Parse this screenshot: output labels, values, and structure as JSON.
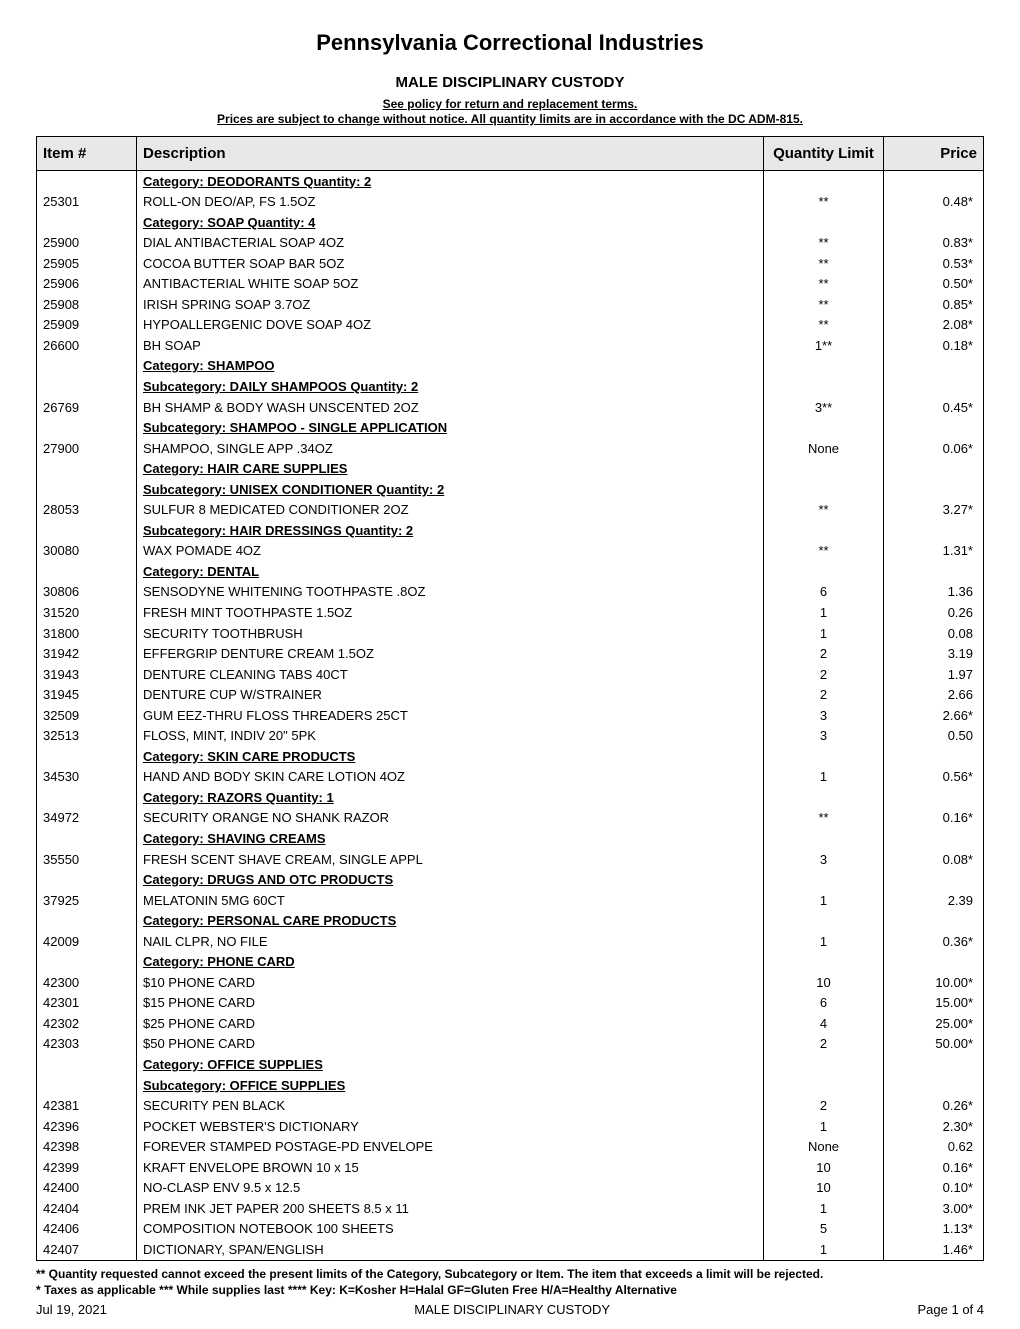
{
  "header": {
    "title": "Pennsylvania Correctional Industries",
    "subtitle": "MALE DISCIPLINARY CUSTODY",
    "policy_line1": "See policy for return and replacement terms.",
    "policy_line2": "Prices are subject to change without notice. All quantity limits are in accordance with the DC ADM-815."
  },
  "columns": {
    "item": "Item #",
    "desc": "Description",
    "qty": "Quantity Limit",
    "price": "Price"
  },
  "rows": [
    {
      "type": "cat",
      "desc": "Category: DEODORANTS Quantity: 2"
    },
    {
      "type": "item",
      "item": "25301",
      "desc": "ROLL-ON DEO/AP, FS 1.5OZ",
      "qty": "**",
      "price": "0.48*"
    },
    {
      "type": "cat",
      "desc": "Category: SOAP Quantity: 4"
    },
    {
      "type": "item",
      "item": "25900",
      "desc": "DIAL ANTIBACTERIAL SOAP 4OZ",
      "qty": "**",
      "price": "0.83*"
    },
    {
      "type": "item",
      "item": "25905",
      "desc": "COCOA BUTTER SOAP BAR 5OZ",
      "qty": "**",
      "price": "0.53*"
    },
    {
      "type": "item",
      "item": "25906",
      "desc": "ANTIBACTERIAL WHITE SOAP 5OZ",
      "qty": "**",
      "price": "0.50*"
    },
    {
      "type": "item",
      "item": "25908",
      "desc": "IRISH SPRING SOAP 3.7OZ",
      "qty": "**",
      "price": "0.85*"
    },
    {
      "type": "item",
      "item": "25909",
      "desc": "HYPOALLERGENIC DOVE SOAP 4OZ",
      "qty": "**",
      "price": "2.08*"
    },
    {
      "type": "item",
      "item": "26600",
      "desc": "BH SOAP",
      "qty": "1**",
      "price": "0.18*"
    },
    {
      "type": "cat",
      "desc": "Category: SHAMPOO"
    },
    {
      "type": "subcat",
      "desc": "Subcategory: DAILY SHAMPOOS Quantity: 2"
    },
    {
      "type": "item",
      "item": "26769",
      "desc": "BH SHAMP & BODY WASH UNSCENTED 2OZ",
      "qty": "3**",
      "price": "0.45*"
    },
    {
      "type": "subcat",
      "desc": "Subcategory: SHAMPOO - SINGLE APPLICATION"
    },
    {
      "type": "item",
      "item": "27900",
      "desc": "SHAMPOO, SINGLE APP .34OZ",
      "qty": "None",
      "price": "0.06*"
    },
    {
      "type": "cat",
      "desc": "Category: HAIR CARE SUPPLIES"
    },
    {
      "type": "subcat",
      "desc": "Subcategory: UNISEX CONDITIONER Quantity: 2"
    },
    {
      "type": "item",
      "item": "28053",
      "desc": "SULFUR 8 MEDICATED CONDITIONER 2OZ",
      "qty": "**",
      "price": "3.27*"
    },
    {
      "type": "subcat",
      "desc": "Subcategory: HAIR DRESSINGS Quantity: 2"
    },
    {
      "type": "item",
      "item": "30080",
      "desc": "WAX POMADE 4OZ",
      "qty": "**",
      "price": "1.31*"
    },
    {
      "type": "cat",
      "desc": "Category: DENTAL"
    },
    {
      "type": "item",
      "item": "30806",
      "desc": "SENSODYNE WHITENING TOOTHPASTE .8OZ",
      "qty": "6",
      "price": "1.36"
    },
    {
      "type": "item",
      "item": "31520",
      "desc": "FRESH MINT TOOTHPASTE 1.5OZ",
      "qty": "1",
      "price": "0.26"
    },
    {
      "type": "item",
      "item": "31800",
      "desc": "SECURITY TOOTHBRUSH",
      "qty": "1",
      "price": "0.08"
    },
    {
      "type": "item",
      "item": "31942",
      "desc": "EFFERGRIP DENTURE CREAM 1.5OZ",
      "qty": "2",
      "price": "3.19"
    },
    {
      "type": "item",
      "item": "31943",
      "desc": "DENTURE CLEANING TABS 40CT",
      "qty": "2",
      "price": "1.97"
    },
    {
      "type": "item",
      "item": "31945",
      "desc": "DENTURE CUP W/STRAINER",
      "qty": "2",
      "price": "2.66"
    },
    {
      "type": "item",
      "item": "32509",
      "desc": "GUM EEZ-THRU FLOSS THREADERS 25CT",
      "qty": "3",
      "price": "2.66*"
    },
    {
      "type": "item",
      "item": "32513",
      "desc": "FLOSS, MINT, INDIV 20\" 5PK",
      "qty": "3",
      "price": "0.50"
    },
    {
      "type": "cat",
      "desc": "Category: SKIN CARE PRODUCTS"
    },
    {
      "type": "item",
      "item": "34530",
      "desc": "HAND AND BODY SKIN CARE LOTION 4OZ",
      "qty": "1",
      "price": "0.56*"
    },
    {
      "type": "cat",
      "desc": "Category: RAZORS Quantity: 1"
    },
    {
      "type": "item",
      "item": "34972",
      "desc": "SECURITY ORANGE NO SHANK RAZOR",
      "qty": "**",
      "price": "0.16*"
    },
    {
      "type": "cat",
      "desc": "Category: SHAVING CREAMS"
    },
    {
      "type": "item",
      "item": "35550",
      "desc": "FRESH SCENT SHAVE CREAM, SINGLE APPL",
      "qty": "3",
      "price": "0.08*"
    },
    {
      "type": "cat",
      "desc": "Category: DRUGS AND OTC PRODUCTS"
    },
    {
      "type": "item",
      "item": "37925",
      "desc": "MELATONIN 5MG 60CT",
      "qty": "1",
      "price": "2.39"
    },
    {
      "type": "cat",
      "desc": "Category: PERSONAL CARE PRODUCTS"
    },
    {
      "type": "item",
      "item": "42009",
      "desc": "NAIL CLPR, NO FILE",
      "qty": "1",
      "price": "0.36*"
    },
    {
      "type": "cat",
      "desc": "Category: PHONE CARD"
    },
    {
      "type": "item",
      "item": "42300",
      "desc": "$10 PHONE CARD",
      "qty": "10",
      "price": "10.00*"
    },
    {
      "type": "item",
      "item": "42301",
      "desc": "$15 PHONE CARD",
      "qty": "6",
      "price": "15.00*"
    },
    {
      "type": "item",
      "item": "42302",
      "desc": "$25 PHONE CARD",
      "qty": "4",
      "price": "25.00*"
    },
    {
      "type": "item",
      "item": "42303",
      "desc": "$50 PHONE CARD",
      "qty": "2",
      "price": "50.00*"
    },
    {
      "type": "cat",
      "desc": "Category: OFFICE SUPPLIES"
    },
    {
      "type": "subcat",
      "desc": "Subcategory: OFFICE SUPPLIES"
    },
    {
      "type": "item",
      "item": "42381",
      "desc": "SECURITY PEN BLACK",
      "qty": "2",
      "price": "0.26*"
    },
    {
      "type": "item",
      "item": "42396",
      "desc": "POCKET WEBSTER'S DICTIONARY",
      "qty": "1",
      "price": "2.30*"
    },
    {
      "type": "item",
      "item": "42398",
      "desc": "FOREVER STAMPED POSTAGE-PD ENVELOPE",
      "qty": "None",
      "price": "0.62"
    },
    {
      "type": "item",
      "item": "42399",
      "desc": "KRAFT ENVELOPE BROWN 10 x 15",
      "qty": "10",
      "price": "0.16*"
    },
    {
      "type": "item",
      "item": "42400",
      "desc": "NO-CLASP ENV 9.5 x 12.5",
      "qty": "10",
      "price": "0.10*"
    },
    {
      "type": "item",
      "item": "42404",
      "desc": "PREM INK JET PAPER 200 SHEETS 8.5 x 11",
      "qty": "1",
      "price": "3.00*"
    },
    {
      "type": "item",
      "item": "42406",
      "desc": "COMPOSITION NOTEBOOK 100 SHEETS",
      "qty": "5",
      "price": "1.13*"
    },
    {
      "type": "item",
      "item": "42407",
      "desc": "DICTIONARY, SPAN/ENGLISH",
      "qty": "1",
      "price": "1.46*"
    }
  ],
  "footnotes": {
    "line1": "** Quantity requested cannot exceed the present limits of the Category, Subcategory or Item.  The item that exceeds a limit will be rejected.",
    "line2": "* Taxes as applicable       *** While supplies last     **** Key: K=Kosher H=Halal GF=Gluten Free H/A=Healthy Alternative"
  },
  "footer": {
    "date": "Jul 19, 2021",
    "center": "MALE DISCIPLINARY CUSTODY",
    "page": "Page 1 of 4"
  }
}
